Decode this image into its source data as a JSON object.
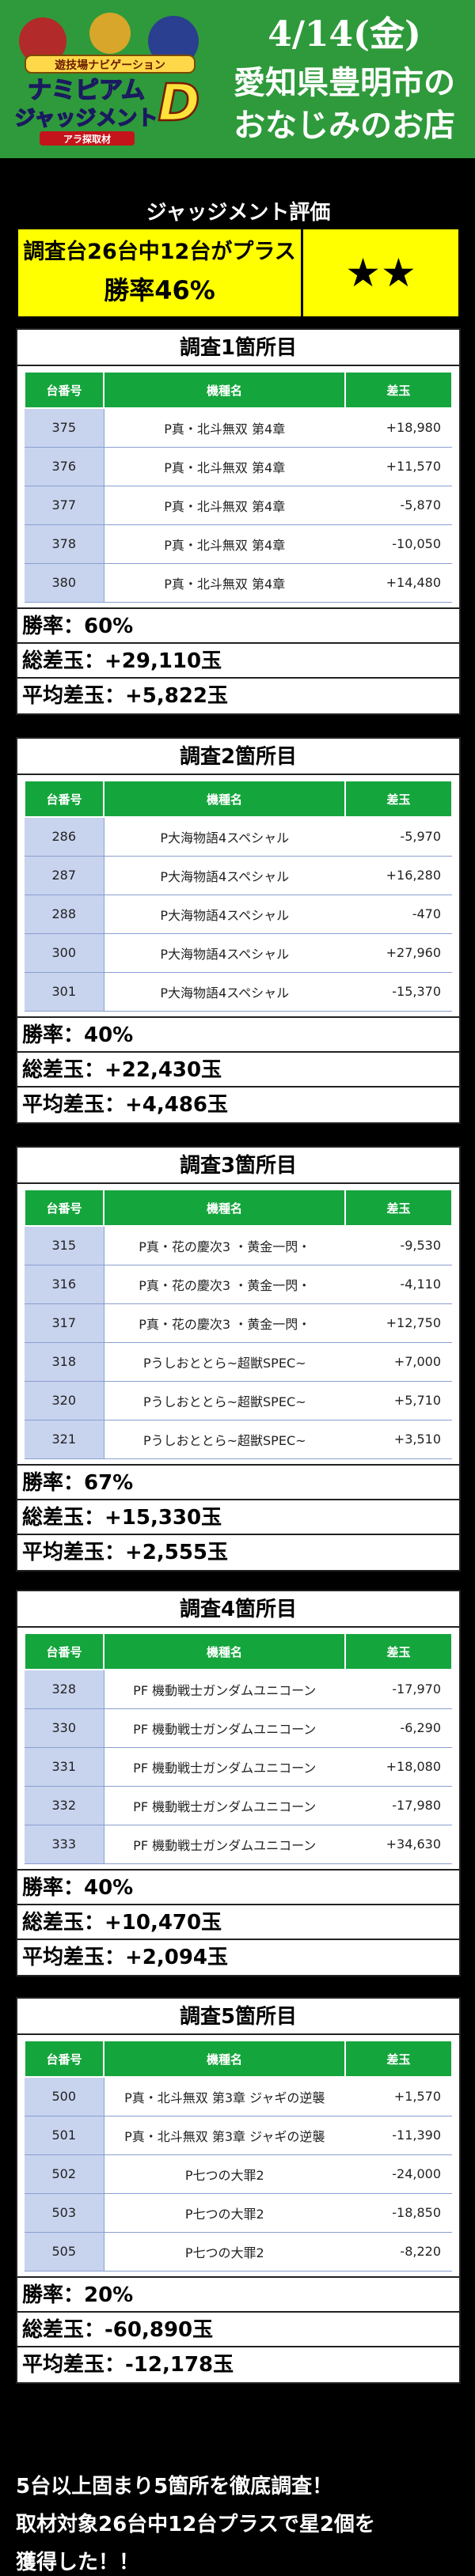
{
  "header": {
    "logo": {
      "subtitle": "遊技場ナビゲーション",
      "title_line1": "ナミピアム",
      "title_line2": "ジャッジメント",
      "badge_letter": "D",
      "ribbon": "アラ探取材"
    },
    "date": "4/14(金)",
    "line1": "愛知県豊明市の",
    "line2": "おなじみのお店"
  },
  "evaluation": {
    "title": "ジャッジメント評価",
    "summary": "調査台26台中12台がプラス",
    "win_rate": "勝率46%",
    "stars": "★★"
  },
  "table_headers": {
    "no": "台番号",
    "machine": "機種名",
    "diff": "差玉"
  },
  "sections": [
    {
      "title": "調査1箇所目",
      "rows": [
        {
          "no": "375",
          "machine": "P真・北斗無双 第4章",
          "diff": "+18,980"
        },
        {
          "no": "376",
          "machine": "P真・北斗無双 第4章",
          "diff": "+11,570"
        },
        {
          "no": "377",
          "machine": "P真・北斗無双 第4章",
          "diff": "-5,870"
        },
        {
          "no": "378",
          "machine": "P真・北斗無双 第4章",
          "diff": "-10,050"
        },
        {
          "no": "380",
          "machine": "P真・北斗無双 第4章",
          "diff": "+14,480"
        }
      ],
      "win_rate": "勝率：60%",
      "total": "総差玉：+29,110玉",
      "avg": "平均差玉：+5,822玉"
    },
    {
      "title": "調査2箇所目",
      "rows": [
        {
          "no": "286",
          "machine": "P大海物語4スペシャル",
          "diff": "-5,970"
        },
        {
          "no": "287",
          "machine": "P大海物語4スペシャル",
          "diff": "+16,280"
        },
        {
          "no": "288",
          "machine": "P大海物語4スペシャル",
          "diff": "-470"
        },
        {
          "no": "300",
          "machine": "P大海物語4スペシャル",
          "diff": "+27,960"
        },
        {
          "no": "301",
          "machine": "P大海物語4スペシャル",
          "diff": "-15,370"
        }
      ],
      "win_rate": "勝率：40%",
      "total": "総差玉：+22,430玉",
      "avg": "平均差玉：+4,486玉"
    },
    {
      "title": "調査3箇所目",
      "rows": [
        {
          "no": "315",
          "machine": "P真・花の慶次3 ・黄金一閃・",
          "diff": "-9,530"
        },
        {
          "no": "316",
          "machine": "P真・花の慶次3 ・黄金一閃・",
          "diff": "-4,110"
        },
        {
          "no": "317",
          "machine": "P真・花の慶次3 ・黄金一閃・",
          "diff": "+12,750"
        },
        {
          "no": "318",
          "machine": "Pうしおととら~超獣SPEC~",
          "diff": "+7,000"
        },
        {
          "no": "320",
          "machine": "Pうしおととら~超獣SPEC~",
          "diff": "+5,710"
        },
        {
          "no": "321",
          "machine": "Pうしおととら~超獣SPEC~",
          "diff": "+3,510"
        }
      ],
      "win_rate": "勝率：67%",
      "total": "総差玉：+15,330玉",
      "avg": "平均差玉：+2,555玉"
    },
    {
      "title": "調査4箇所目",
      "rows": [
        {
          "no": "328",
          "machine": "PF 機動戦士ガンダムユニコーン",
          "diff": "-17,970"
        },
        {
          "no": "330",
          "machine": "PF 機動戦士ガンダムユニコーン",
          "diff": "-6,290"
        },
        {
          "no": "331",
          "machine": "PF 機動戦士ガンダムユニコーン",
          "diff": "+18,080"
        },
        {
          "no": "332",
          "machine": "PF 機動戦士ガンダムユニコーン",
          "diff": "-17,980"
        },
        {
          "no": "333",
          "machine": "PF 機動戦士ガンダムユニコーン",
          "diff": "+34,630"
        }
      ],
      "win_rate": "勝率：40%",
      "total": "総差玉：+10,470玉",
      "avg": "平均差玉：+2,094玉"
    },
    {
      "title": "調査5箇所目",
      "rows": [
        {
          "no": "500",
          "machine": "P真・北斗無双 第3章 ジャギの逆襲",
          "diff": "+1,570"
        },
        {
          "no": "501",
          "machine": "P真・北斗無双 第3章 ジャギの逆襲",
          "diff": "-11,390"
        },
        {
          "no": "502",
          "machine": "P七つの大罪2",
          "diff": "-24,000"
        },
        {
          "no": "503",
          "machine": "P七つの大罪2",
          "diff": "-18,850"
        },
        {
          "no": "505",
          "machine": "P七つの大罪2",
          "diff": "-8,220"
        }
      ],
      "win_rate": "勝率：20%",
      "total": "総差玉：-60,890玉",
      "avg": "平均差玉：-12,178玉"
    }
  ],
  "summary": {
    "line1": "5台以上固まり5箇所を徹底調査！",
    "line2": "取材対象26台中12台プラスで星2個を",
    "line3": "獲得した！！"
  }
}
